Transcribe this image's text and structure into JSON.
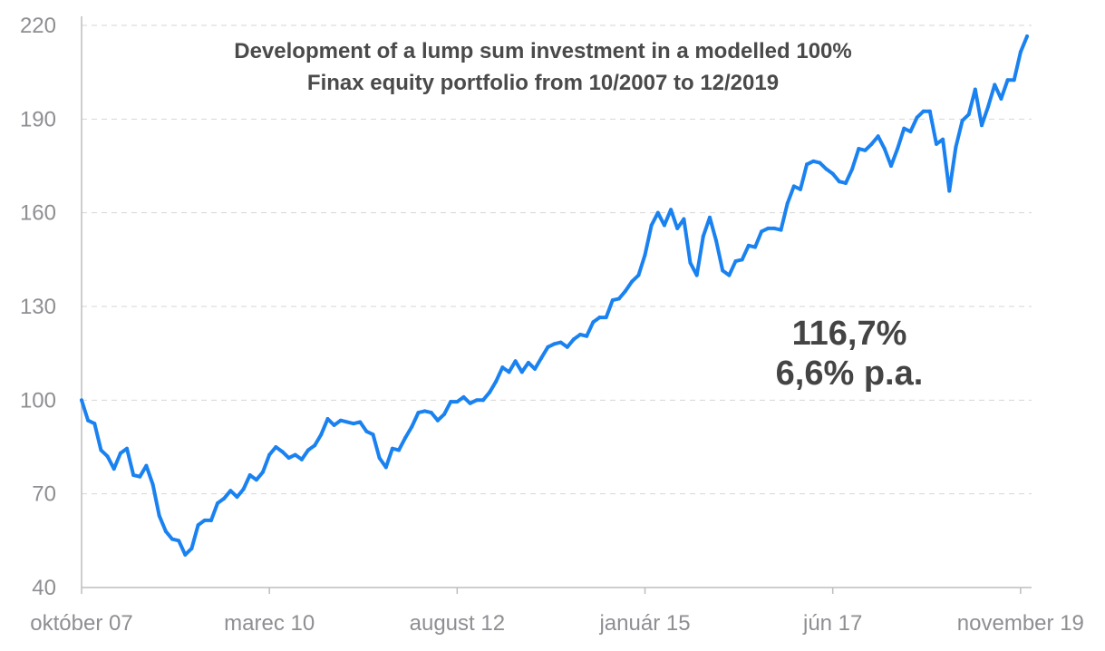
{
  "chart_data": {
    "type": "line",
    "title_lines": [
      "Development of a lump sum investment in a modelled 100%",
      "Finax equity portfolio from 10/2007 to 12/2019"
    ],
    "annotations": [
      "116,7%",
      "6,6% p.a."
    ],
    "x_start": "2007-10",
    "x_end": "2019-12",
    "x_ticks": [
      {
        "date": "2007-10",
        "label": "október 07"
      },
      {
        "date": "2010-03",
        "label": "marec 10"
      },
      {
        "date": "2012-08",
        "label": "august 12"
      },
      {
        "date": "2015-01",
        "label": "január 15"
      },
      {
        "date": "2017-06",
        "label": "jún 17"
      },
      {
        "date": "2019-11",
        "label": "november 19"
      }
    ],
    "y_ticks": [
      40,
      70,
      100,
      130,
      160,
      190,
      220
    ],
    "ylim": [
      40,
      220
    ],
    "grid": true,
    "color": "#1a82f0",
    "series": [
      {
        "x": [
          "2007-10",
          "2007-11",
          "2007-12",
          "2008-01",
          "2008-02",
          "2008-03",
          "2008-04",
          "2008-05",
          "2008-06",
          "2008-07",
          "2008-08",
          "2008-09",
          "2008-10",
          "2008-11",
          "2008-12",
          "2009-01",
          "2009-02",
          "2009-03",
          "2009-04",
          "2009-05",
          "2009-06",
          "2009-07",
          "2009-08",
          "2009-09",
          "2009-10",
          "2009-11",
          "2009-12",
          "2010-01",
          "2010-02",
          "2010-03",
          "2010-04",
          "2010-05",
          "2010-06",
          "2010-07",
          "2010-08",
          "2010-09",
          "2010-10",
          "2010-11",
          "2010-12",
          "2011-01",
          "2011-02",
          "2011-03",
          "2011-04",
          "2011-05",
          "2011-06",
          "2011-07",
          "2011-08",
          "2011-09",
          "2011-10",
          "2011-11",
          "2011-12",
          "2012-01",
          "2012-02",
          "2012-03",
          "2012-04",
          "2012-05",
          "2012-06",
          "2012-07",
          "2012-08",
          "2012-09",
          "2012-10",
          "2012-11",
          "2012-12",
          "2013-01",
          "2013-02",
          "2013-03",
          "2013-04",
          "2013-05",
          "2013-06",
          "2013-07",
          "2013-08",
          "2013-09",
          "2013-10",
          "2013-11",
          "2013-12",
          "2014-01",
          "2014-02",
          "2014-03",
          "2014-04",
          "2014-05",
          "2014-06",
          "2014-07",
          "2014-08",
          "2014-09",
          "2014-10",
          "2014-11",
          "2014-12",
          "2015-01",
          "2015-02",
          "2015-03",
          "2015-04",
          "2015-05",
          "2015-06",
          "2015-07",
          "2015-08",
          "2015-09",
          "2015-10",
          "2015-11",
          "2015-12",
          "2016-01",
          "2016-02",
          "2016-03",
          "2016-04",
          "2016-05",
          "2016-06",
          "2016-07",
          "2016-08",
          "2016-09",
          "2016-10",
          "2016-11",
          "2016-12",
          "2017-01",
          "2017-02",
          "2017-03",
          "2017-04",
          "2017-05",
          "2017-06",
          "2017-07",
          "2017-08",
          "2017-09",
          "2017-10",
          "2017-11",
          "2017-12",
          "2018-01",
          "2018-02",
          "2018-03",
          "2018-04",
          "2018-05",
          "2018-06",
          "2018-07",
          "2018-08",
          "2018-09",
          "2018-10",
          "2018-11",
          "2018-12",
          "2019-01",
          "2019-02",
          "2019-03",
          "2019-04",
          "2019-05",
          "2019-06",
          "2019-07",
          "2019-08",
          "2019-09",
          "2019-10",
          "2019-11",
          "2019-12"
        ],
        "values": [
          100,
          93.5,
          92.5,
          84,
          82,
          78,
          83,
          84.5,
          76,
          75.5,
          79,
          73,
          63,
          58,
          55.5,
          55,
          50.5,
          52.5,
          60,
          61.5,
          61.5,
          67,
          68.5,
          71,
          69,
          71.5,
          76,
          74.5,
          77,
          82.5,
          85,
          83.5,
          81.5,
          82.5,
          81,
          84,
          85.5,
          89,
          94,
          92,
          93.5,
          93,
          92.5,
          93,
          90,
          89,
          81.5,
          78.5,
          84.5,
          84,
          88,
          91.5,
          96,
          96.5,
          96,
          93.5,
          95.5,
          99.5,
          99.5,
          101,
          99,
          100,
          100,
          102.5,
          106,
          110.5,
          109,
          112.5,
          109,
          112,
          110,
          113.5,
          117,
          118,
          118.5,
          117,
          119.5,
          121,
          120.5,
          125,
          126.5,
          126.5,
          132,
          132.5,
          135,
          138,
          140,
          146.5,
          156,
          160,
          156,
          161,
          155,
          158,
          144,
          140,
          152.5,
          158.5,
          151,
          141.5,
          140,
          144.5,
          145,
          149.5,
          149,
          154,
          155,
          155,
          154.5,
          163,
          168.5,
          167.5,
          175.5,
          176.5,
          176,
          174,
          172.5,
          170,
          169.5,
          174,
          180.5,
          180,
          182,
          184.5,
          180.5,
          175,
          180.5,
          187,
          186,
          190.5,
          192.5,
          192.5,
          182,
          183.5,
          167,
          181,
          189.5,
          191.5,
          199.5,
          188,
          194,
          201,
          196.5,
          202.5,
          202.5,
          211.5,
          216.5
        ]
      }
    ]
  }
}
